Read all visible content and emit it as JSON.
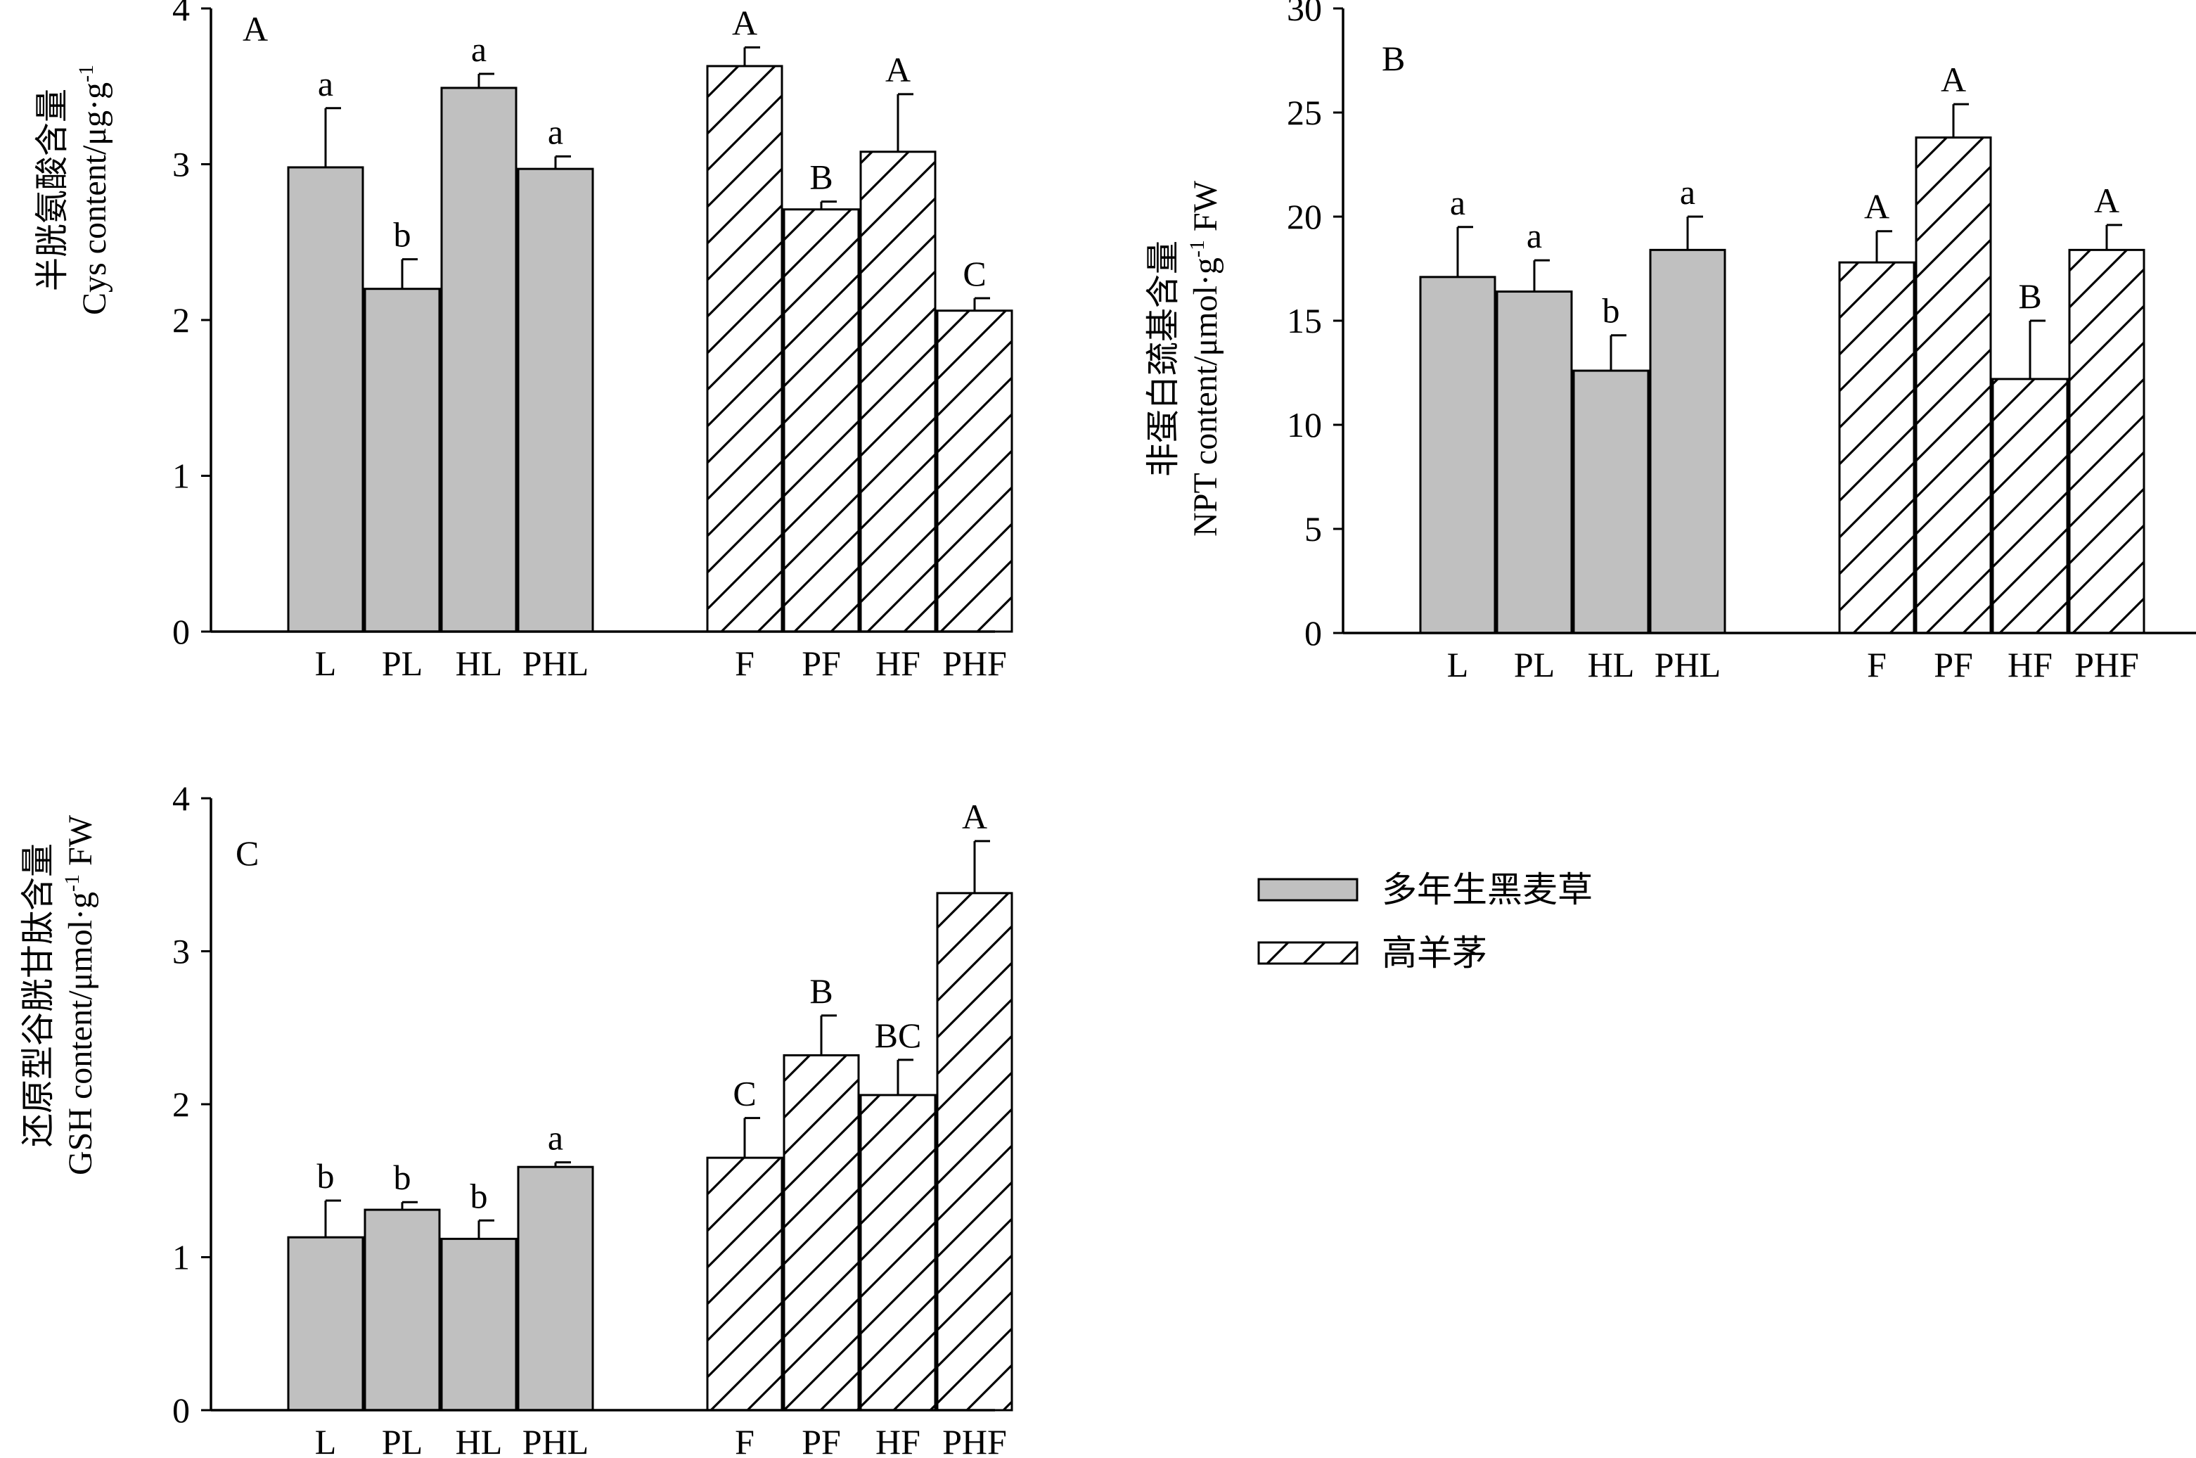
{
  "colors": {
    "lolium": "#c0c0c0",
    "festuca": "#ffffff",
    "stroke": "#000000"
  },
  "legend": {
    "placement": "right-middle",
    "entries": [
      {
        "label": "多年生黑麦草",
        "style": "gray"
      },
      {
        "label": "高羊茅",
        "style": "hatch"
      }
    ]
  },
  "chart_data": [
    {
      "type": "bar",
      "panel": "A",
      "ylabel_cn": "半胱氨酸含量",
      "ylabel_en": "Cys content/μg·g",
      "ylabel_sup": "-1",
      "ylabel_tail": "",
      "ylim": [
        0,
        4
      ],
      "yticks": [
        0,
        1,
        2,
        3,
        4
      ],
      "categories": [
        "L",
        "PL",
        "HL",
        "PHL",
        "F",
        "PF",
        "HF",
        "PHF"
      ],
      "values": [
        2.98,
        2.2,
        3.49,
        2.97,
        3.63,
        2.71,
        3.08,
        2.06
      ],
      "errors": [
        0.38,
        0.19,
        0.09,
        0.08,
        0.12,
        0.05,
        0.37,
        0.08
      ],
      "letters": [
        "a",
        "b",
        "a",
        "a",
        "A",
        "B",
        "A",
        "C"
      ],
      "styles": [
        "gray",
        "gray",
        "gray",
        "gray",
        "hatch",
        "hatch",
        "hatch",
        "hatch"
      ]
    },
    {
      "type": "bar",
      "panel": "B",
      "ylabel_cn": "非蛋白巯基含量",
      "ylabel_en": "NPT content/μmol·g",
      "ylabel_sup": "-1",
      "ylabel_tail": " FW",
      "ylim": [
        0,
        30
      ],
      "yticks": [
        0,
        5,
        10,
        15,
        20,
        25,
        30
      ],
      "categories": [
        "L",
        "PL",
        "HL",
        "PHL",
        "F",
        "PF",
        "HF",
        "PHF"
      ],
      "values": [
        17.1,
        16.4,
        12.6,
        18.4,
        17.8,
        23.8,
        12.2,
        18.4
      ],
      "errors": [
        2.4,
        1.5,
        1.7,
        1.6,
        1.5,
        1.6,
        2.8,
        1.2
      ],
      "letters": [
        "a",
        "a",
        "b",
        "a",
        "A",
        "A",
        "B",
        "A"
      ],
      "styles": [
        "gray",
        "gray",
        "gray",
        "gray",
        "hatch",
        "hatch",
        "hatch",
        "hatch"
      ]
    },
    {
      "type": "bar",
      "panel": "C",
      "ylabel_cn": "还原型谷胱甘肽含量",
      "ylabel_en": "GSH content/μmol·g",
      "ylabel_sup": "-1",
      "ylabel_tail": " FW",
      "ylim": [
        0,
        4
      ],
      "yticks": [
        0,
        1,
        2,
        3,
        4
      ],
      "categories": [
        "L",
        "PL",
        "HL",
        "PHL",
        "F",
        "PF",
        "HF",
        "PHF"
      ],
      "values": [
        1.13,
        1.31,
        1.12,
        1.59,
        1.65,
        2.32,
        2.06,
        3.38
      ],
      "errors": [
        0.24,
        0.05,
        0.12,
        0.03,
        0.26,
        0.26,
        0.23,
        0.34
      ],
      "letters": [
        "b",
        "b",
        "b",
        "a",
        "C",
        "B",
        "BC",
        "A"
      ],
      "styles": [
        "gray",
        "gray",
        "gray",
        "gray",
        "hatch",
        "hatch",
        "hatch",
        "hatch"
      ]
    }
  ]
}
